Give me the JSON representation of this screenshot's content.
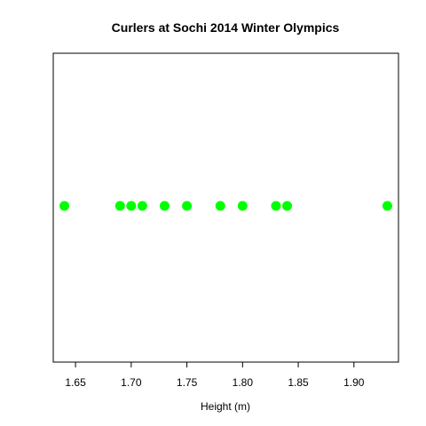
{
  "chart_data": {
    "type": "scatter",
    "title": "Curlers at Sochi 2014 Winter Olympics",
    "xlabel": "Height (m)",
    "ylabel": "",
    "x": [
      1.64,
      1.69,
      1.7,
      1.71,
      1.73,
      1.75,
      1.78,
      1.8,
      1.83,
      1.84,
      1.93
    ],
    "xlim": [
      1.63,
      1.94
    ],
    "x_ticks": [
      "1.65",
      "1.70",
      "1.75",
      "1.80",
      "1.85",
      "1.90"
    ],
    "y_axis_visible": false,
    "grid": false,
    "legend": "none",
    "point_color": "#00ff00"
  }
}
